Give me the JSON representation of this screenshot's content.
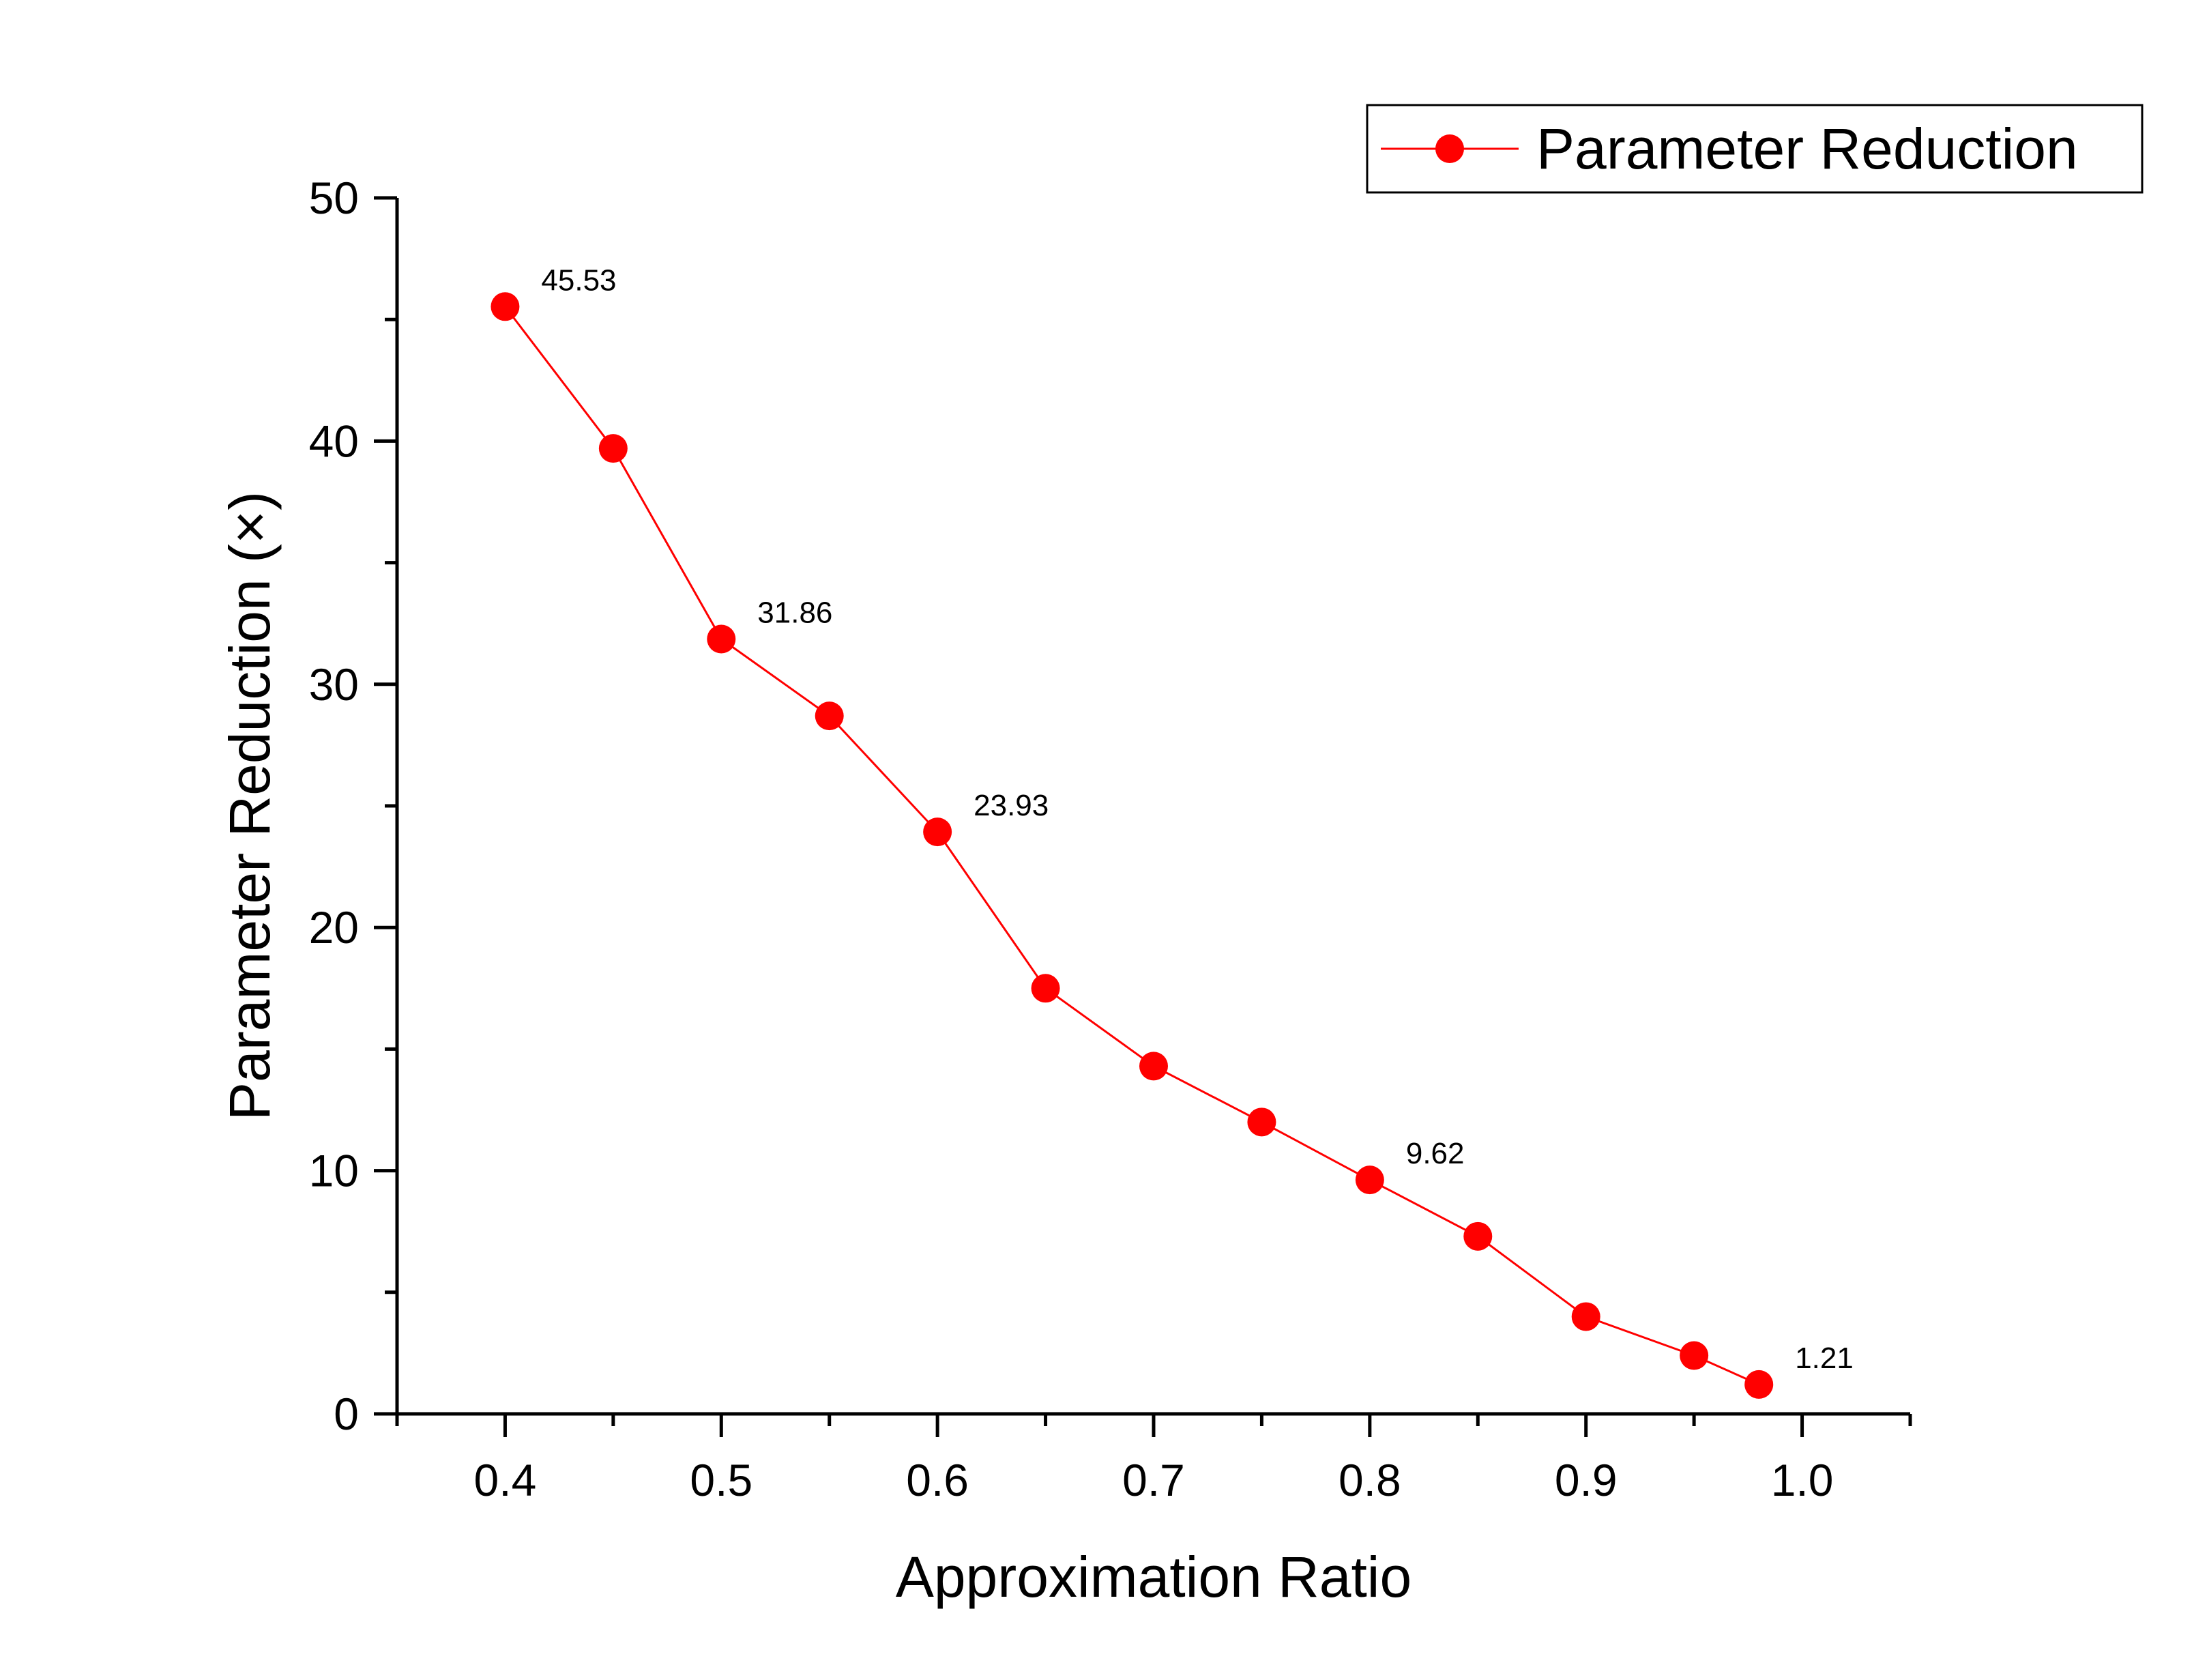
{
  "chart_data": {
    "type": "line",
    "title": "",
    "xlabel": "Approximation Ratio",
    "ylabel": "Parameter Reduction (×)",
    "xlim": [
      0.35,
      1.05
    ],
    "ylim": [
      0,
      50
    ],
    "x_ticks": [
      0.4,
      0.5,
      0.6,
      0.7,
      0.8,
      0.9,
      1.0
    ],
    "x_tick_labels": [
      "0.4",
      "0.5",
      "0.6",
      "0.7",
      "0.8",
      "0.9",
      "1.0"
    ],
    "x_minor_ticks": [
      0.35,
      0.45,
      0.55,
      0.65,
      0.75,
      0.85,
      0.95,
      1.05
    ],
    "y_ticks": [
      0,
      10,
      20,
      30,
      40,
      50
    ],
    "y_tick_labels": [
      "0",
      "10",
      "20",
      "30",
      "40",
      "50"
    ],
    "y_minor_ticks": [
      5,
      15,
      25,
      35,
      45
    ],
    "grid": false,
    "legend_position": "top-right",
    "series": [
      {
        "name": "Parameter Reduction",
        "color": "#ff0000",
        "x": [
          0.4,
          0.45,
          0.5,
          0.55,
          0.6,
          0.65,
          0.7,
          0.75,
          0.8,
          0.85,
          0.9,
          0.95,
          0.98
        ],
        "y": [
          45.53,
          39.7,
          31.86,
          28.7,
          23.93,
          17.5,
          14.3,
          12.0,
          9.62,
          7.3,
          4.0,
          2.4,
          1.21
        ]
      }
    ],
    "data_labels": [
      {
        "x": 0.4,
        "y": 45.53,
        "text": "45.53"
      },
      {
        "x": 0.5,
        "y": 31.86,
        "text": "31.86"
      },
      {
        "x": 0.6,
        "y": 23.93,
        "text": "23.93"
      },
      {
        "x": 0.8,
        "y": 9.62,
        "text": "9.62"
      },
      {
        "x": 0.98,
        "y": 1.21,
        "text": "1.21"
      }
    ]
  }
}
